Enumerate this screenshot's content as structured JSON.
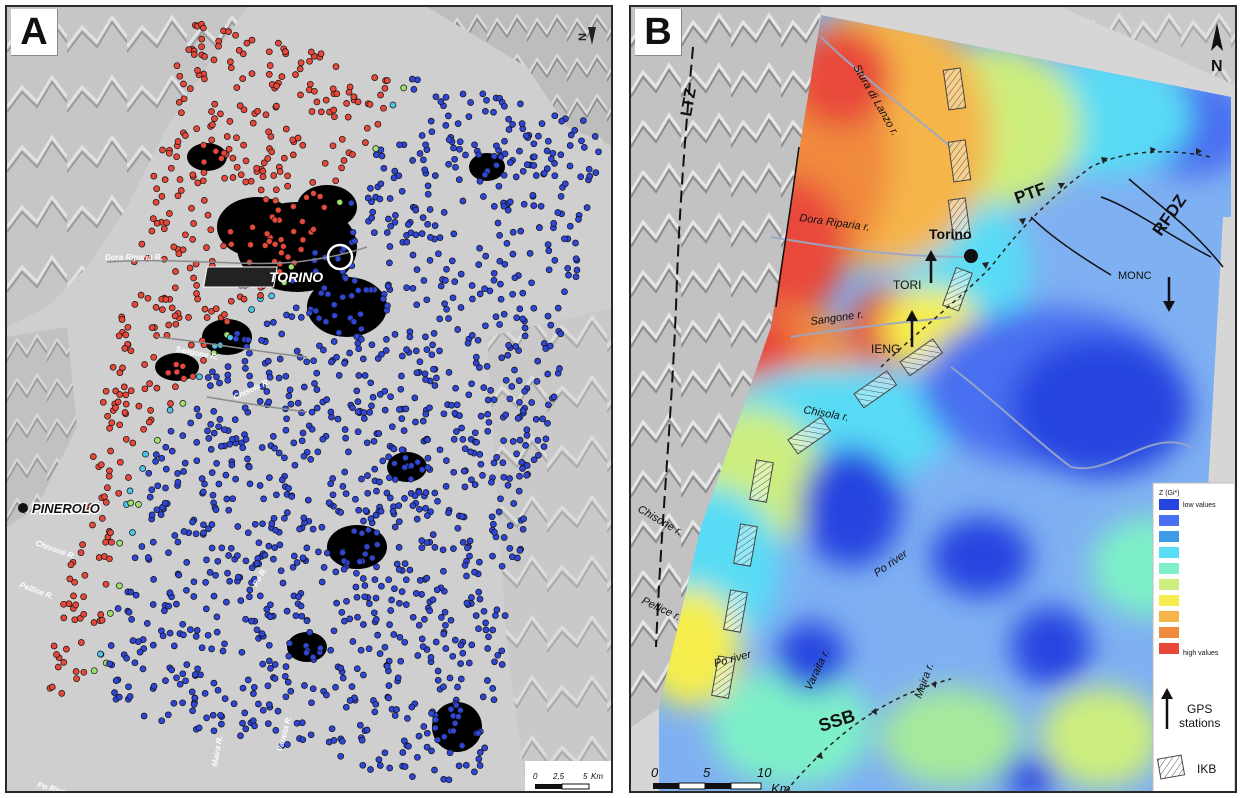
{
  "panel_a": {
    "letter": "A",
    "cities": {
      "torino": "TORINO",
      "pinerolo": "PINEROLO"
    },
    "rivers": [
      {
        "name": "Dora Riparia R."
      },
      {
        "name": "Sangone R."
      },
      {
        "name": "Chisola R."
      },
      {
        "name": "Chisone R."
      },
      {
        "name": "Pellice R."
      },
      {
        "name": "Po R."
      },
      {
        "name": "Varaita R."
      },
      {
        "name": "Maira R."
      },
      {
        "name": "Po River"
      }
    ],
    "north_label": "N",
    "scale_bar": {
      "ticks": [
        "0",
        "2,5",
        "5"
      ],
      "unit": "Km"
    },
    "colors": {
      "red_points": "#e8483a",
      "blue_points": "#2f46d6",
      "transition_points": "#9fe070",
      "cyan_points": "#4fc3e6",
      "urban_dense": "#000000",
      "hillshade": "#c8c8c8"
    }
  },
  "panel_b": {
    "letter": "B",
    "labels": {
      "ltz": "LTZ",
      "ptf": "PTF",
      "rfdz": "RFDZ",
      "ssb": "SSB",
      "torino": "Torino",
      "tori": "TORI",
      "ieng": "IENG",
      "monc": "MONC"
    },
    "rivers": [
      {
        "name": "Stura di Lanzo r."
      },
      {
        "name": "Dora Riparia r."
      },
      {
        "name": "Sangone r."
      },
      {
        "name": "Chisola r."
      },
      {
        "name": "Chisone r."
      },
      {
        "name": "Pellice r."
      },
      {
        "name": "Po river"
      },
      {
        "name": "Po river"
      },
      {
        "name": "Varaita r."
      },
      {
        "name": "Maira r."
      }
    ],
    "north_label": "N",
    "legend": {
      "title": "Z (Gi*)",
      "low": "low values",
      "high": "high values",
      "swatches": [
        "#2645e0",
        "#4a6ff0",
        "#3d9be8",
        "#59dcf5",
        "#7ef0c8",
        "#cdee7e",
        "#f5ee4e",
        "#f5b54a",
        "#f08a3e",
        "#e8483a"
      ],
      "gps_label_line1": "GPS",
      "gps_label_line2": "stations",
      "ikb_label": "IKB"
    },
    "scale_bar": {
      "ticks": [
        "0",
        "5",
        "10"
      ],
      "unit": "Km"
    },
    "colors": {
      "hot": "#e8483a",
      "orange": "#f08a3e",
      "yellow": "#f5e04e",
      "green": "#a6ea9c",
      "cyan": "#59dcf5",
      "light_blue": "#7fb0f2",
      "blue": "#4a6ff0",
      "deep_blue": "#2645e0"
    }
  }
}
